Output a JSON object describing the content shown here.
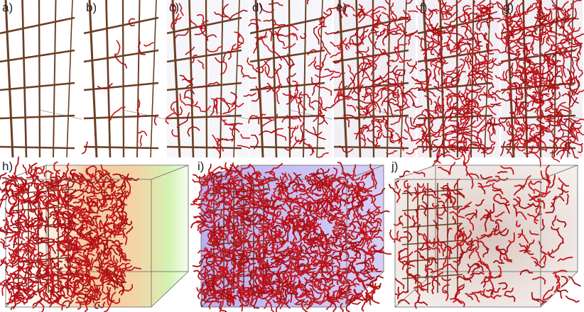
{
  "panels": [
    {
      "label": "a)"
    },
    {
      "label": "b)"
    },
    {
      "label": "c)"
    },
    {
      "label": "d)"
    },
    {
      "label": "e)"
    },
    {
      "label": "f)"
    },
    {
      "label": "g)"
    },
    {
      "label": "h)"
    },
    {
      "label": "i)"
    },
    {
      "label": "j)"
    }
  ]
}
